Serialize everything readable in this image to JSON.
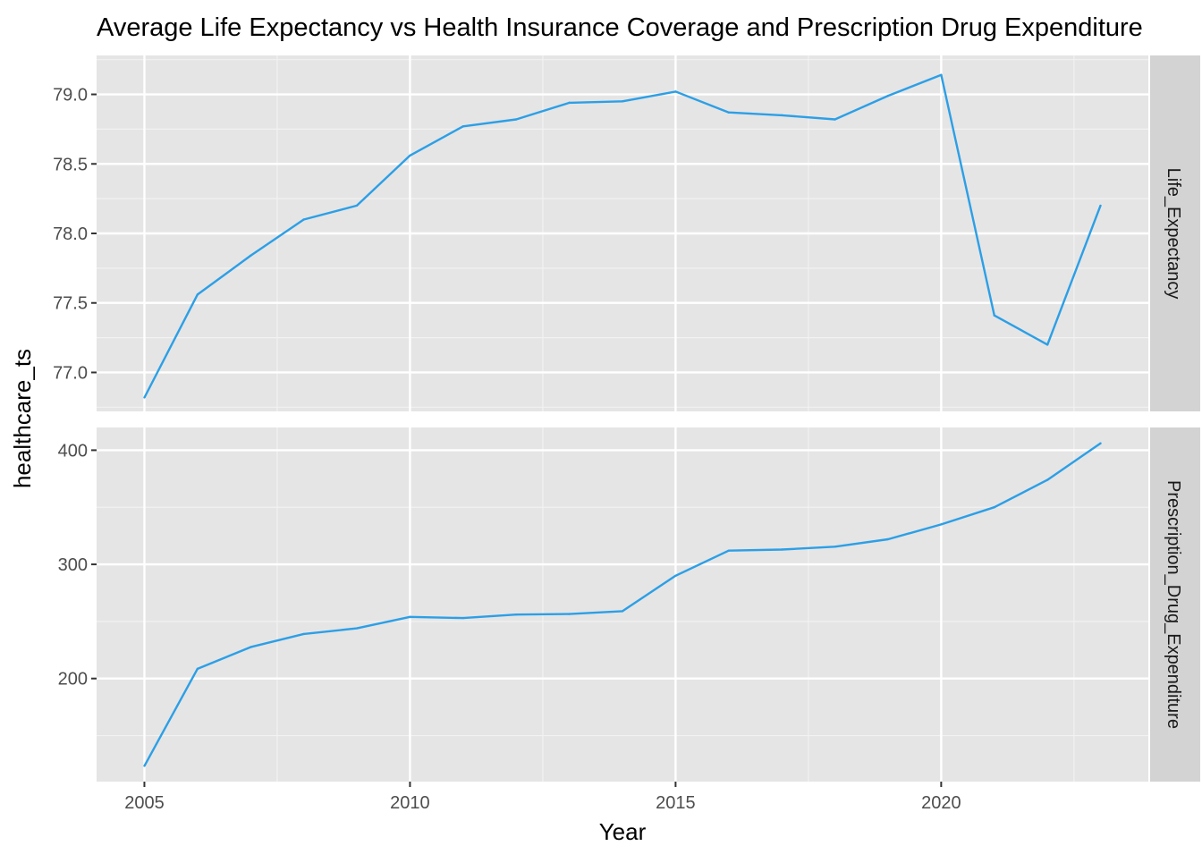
{
  "chart_data": {
    "type": "line",
    "title": "Average Life Expectancy vs Health Insurance Coverage and Prescription Drug Expenditure",
    "xlabel": "Year",
    "ylabel": "healthcare_ts",
    "x_ticks": [
      2005,
      2010,
      2015,
      2020
    ],
    "xlim": [
      2004.1,
      2023.9
    ],
    "line_color": "#2c9fe6",
    "panel_background": "#e5e5e5",
    "strip_background": "#d3d3d3",
    "grid": true,
    "legend": "none",
    "x": [
      2005,
      2006,
      2007,
      2008,
      2009,
      2010,
      2011,
      2012,
      2013,
      2014,
      2015,
      2016,
      2017,
      2018,
      2019,
      2020,
      2021,
      2022,
      2023
    ],
    "panels": [
      {
        "strip_label": "Life_Expectancy",
        "y_ticks": [
          77.0,
          77.5,
          78.0,
          78.5,
          79.0
        ],
        "y_tick_labels": [
          "77.0",
          "77.5",
          "78.0",
          "78.5",
          "79.0"
        ],
        "ylim": [
          76.72,
          79.28
        ],
        "values": [
          76.82,
          77.56,
          77.84,
          78.1,
          78.2,
          78.56,
          78.77,
          78.82,
          78.94,
          78.95,
          79.02,
          78.87,
          78.85,
          78.82,
          78.99,
          79.14,
          77.41,
          77.2,
          78.2
        ]
      },
      {
        "strip_label": "Prescription_Drug_Expenditure",
        "y_ticks": [
          200,
          300,
          400
        ],
        "y_tick_labels": [
          "200",
          "300",
          "400"
        ],
        "ylim": [
          109.7,
          419.9
        ],
        "values": [
          123.5,
          208.5,
          227.5,
          239,
          244,
          254,
          253,
          256,
          256.5,
          259,
          290,
          312,
          313,
          315.5,
          322,
          335,
          350,
          374,
          406
        ]
      }
    ]
  }
}
